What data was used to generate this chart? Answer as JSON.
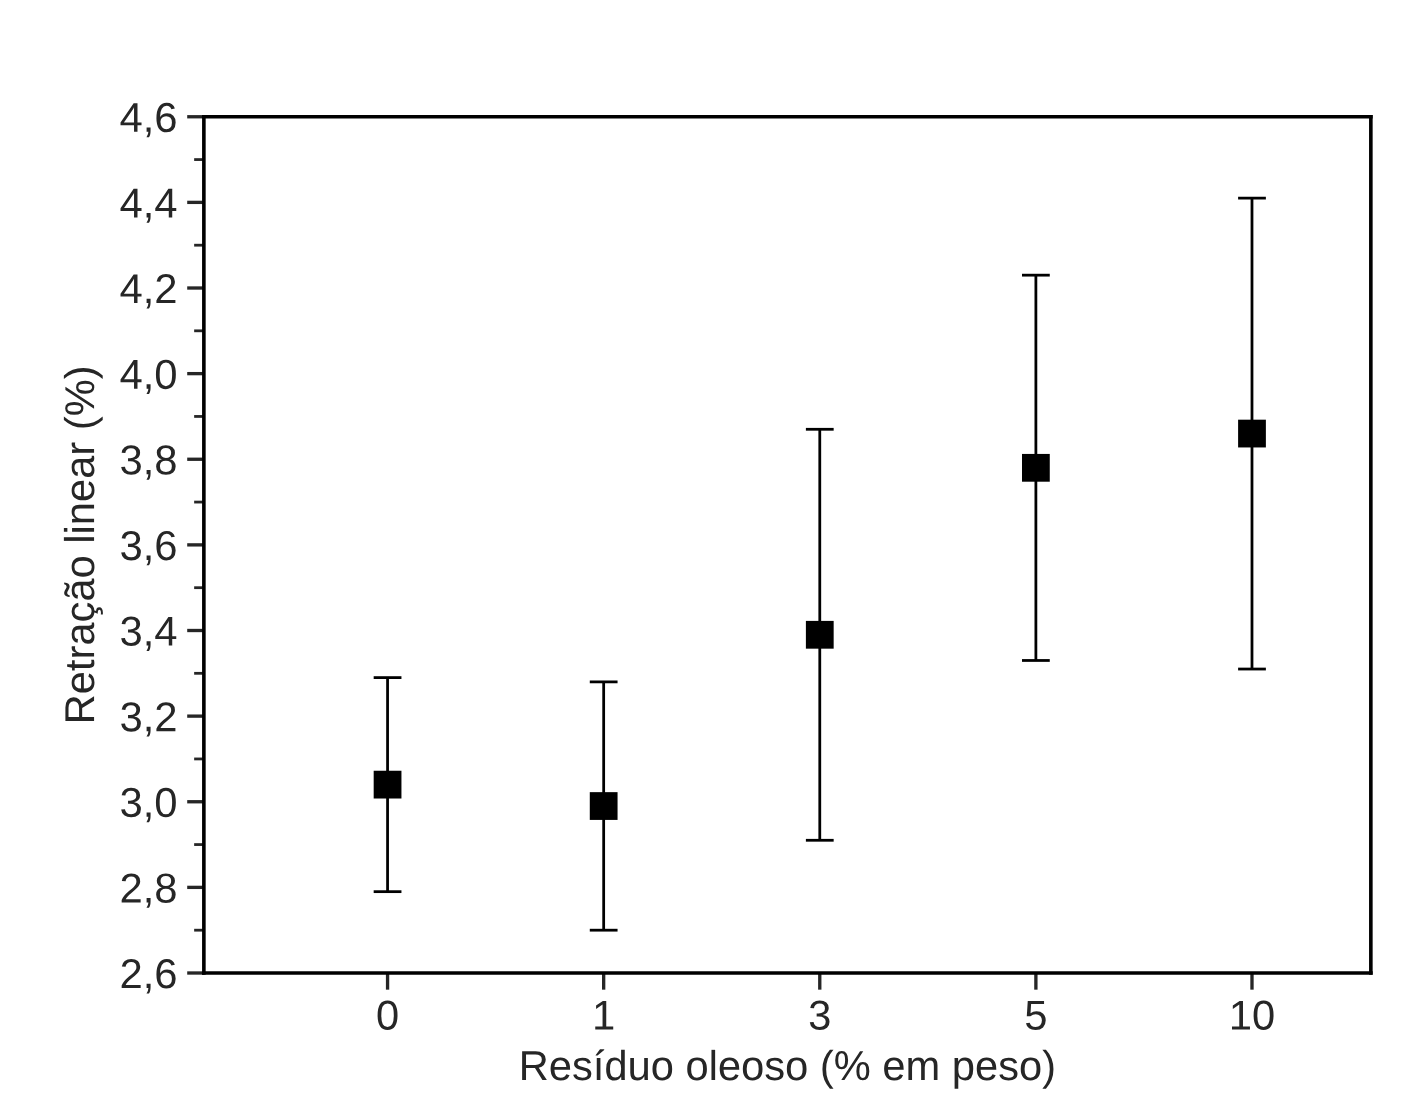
{
  "chart_data": {
    "type": "scatter",
    "xlabel": "Resíduo oleoso (% em peso)",
    "ylabel": "Retração linear (%)",
    "categories": [
      "0",
      "1",
      "3",
      "5",
      "10"
    ],
    "values": [
      3.04,
      2.99,
      3.39,
      3.78,
      3.86
    ],
    "errors": [
      0.25,
      0.29,
      0.48,
      0.45,
      0.55
    ],
    "color": "#000000",
    "marker": "square",
    "ylim": [
      2.6,
      4.6
    ],
    "yticks": [
      {
        "value": 2.6,
        "label": "2,6"
      },
      {
        "value": 2.8,
        "label": "2,8"
      },
      {
        "value": 3.0,
        "label": "3,0"
      },
      {
        "value": 3.2,
        "label": "3,2"
      },
      {
        "value": 3.4,
        "label": "3,4"
      },
      {
        "value": 3.6,
        "label": "3,6"
      },
      {
        "value": 3.8,
        "label": "3,8"
      },
      {
        "value": 4.0,
        "label": "4,0"
      },
      {
        "value": 4.2,
        "label": "4,2"
      },
      {
        "value": 4.4,
        "label": "4,4"
      },
      {
        "value": 4.6,
        "label": "4,6"
      }
    ],
    "grid": false
  }
}
